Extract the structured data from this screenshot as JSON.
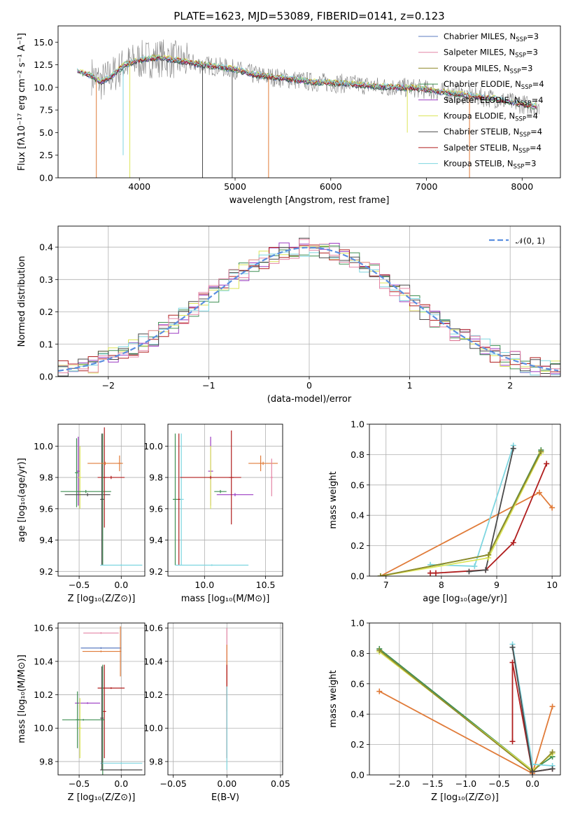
{
  "title": "PLATE=1623, MJD=53089, FIBERID=0141, z=0.123",
  "colors": {
    "Chabrier MILES": "#5b7bc2",
    "Salpeter MILES": "#e486a6",
    "Kroupa MILES": "#8f8a2a",
    "Chabrier ELODIE": "#3f8f52",
    "Salpeter ELODIE": "#9b3bc2",
    "Kroupa ELODIE": "#dce55a",
    "Chabrier STELIB": "#4a4a4a",
    "Salpeter STELIB": "#b01e1e",
    "Kroupa STELIB": "#7ed6e0",
    "orange": "#e07b39",
    "gaussian": "#5b8fe0"
  },
  "chart_data": [
    {
      "id": "spectrum",
      "type": "line",
      "xlabel": "wavelength [Angstrom, rest frame]",
      "ylabel": "Flux [fλ10⁻¹⁷ erg cm⁻² s⁻¹ A⁻¹]",
      "xlim": [
        3150,
        8400
      ],
      "ylim": [
        0,
        16.8
      ],
      "xticks": [
        4000,
        5000,
        6000,
        7000,
        8000
      ],
      "yticks": [
        0.0,
        2.5,
        5.0,
        7.5,
        10.0,
        12.5,
        15.0
      ],
      "legend": [
        {
          "label": "Chabrier MILES, N",
          "sub": "SSP",
          "suffix": "=3",
          "color": "Chabrier MILES"
        },
        {
          "label": "Salpeter MILES, N",
          "sub": "SSP",
          "suffix": "=3",
          "color": "Salpeter MILES"
        },
        {
          "label": "Kroupa MILES, N",
          "sub": "SSP",
          "suffix": "=3",
          "color": "Kroupa MILES"
        },
        {
          "label": "Chabrier ELODIE, N",
          "sub": "SSP",
          "suffix": "=4",
          "color": "Chabrier ELODIE"
        },
        {
          "label": "Salpeter ELODIE, N",
          "sub": "SSP",
          "suffix": "=4",
          "color": "Salpeter ELODIE"
        },
        {
          "label": "Kroupa ELODIE, N",
          "sub": "SSP",
          "suffix": "=4",
          "color": "Kroupa ELODIE"
        },
        {
          "label": "Chabrier STELIB, N",
          "sub": "SSP",
          "suffix": "=4",
          "color": "Chabrier STELIB"
        },
        {
          "label": "Salpeter STELIB, N",
          "sub": "SSP",
          "suffix": "=4",
          "color": "Salpeter STELIB"
        },
        {
          "label": "Kroupa STELIB, N",
          "sub": "SSP",
          "suffix": "=3",
          "color": "Kroupa STELIB"
        }
      ],
      "continuum": {
        "x": [
          3350,
          3500,
          3600,
          3700,
          3850,
          4000,
          4200,
          4400,
          4600,
          4800,
          5000,
          5200,
          5500,
          5800,
          6000,
          6300,
          6500,
          6700,
          6900,
          7100,
          7300,
          7500,
          7700,
          7900,
          8100,
          8200
        ],
        "y": [
          11.8,
          11.3,
          10.6,
          11.2,
          12.5,
          13.0,
          13.3,
          13.0,
          12.6,
          12.3,
          12.0,
          11.4,
          11.0,
          10.6,
          10.5,
          10.3,
          10.1,
          10.0,
          9.9,
          9.6,
          9.3,
          9.0,
          8.8,
          8.3,
          8.0,
          7.8
        ]
      },
      "dips": [
        {
          "x": 3550,
          "y": 0.0,
          "color": "orange"
        },
        {
          "x": 3900,
          "y": 0.0,
          "color": "Kroupa ELODIE"
        },
        {
          "x": 3830,
          "y": 2.5,
          "color": "Kroupa STELIB"
        },
        {
          "x": 4660,
          "y": 0.0,
          "color": "Chabrier STELIB"
        },
        {
          "x": 4970,
          "y": 0.0,
          "color": "Chabrier STELIB"
        },
        {
          "x": 5350,
          "y": 0.0,
          "color": "orange"
        },
        {
          "x": 6800,
          "y": 5.0,
          "color": "Kroupa ELODIE"
        },
        {
          "x": 7450,
          "y": 0.0,
          "color": "orange"
        }
      ]
    },
    {
      "id": "residuals",
      "type": "line",
      "xlabel": "(data-model)/error",
      "ylabel": "Normed distribution",
      "xlim": [
        -2.5,
        2.5
      ],
      "ylim": [
        0,
        0.465
      ],
      "xticks": [
        -2,
        -1,
        0,
        1,
        2
      ],
      "yticks": [
        0.0,
        0.1,
        0.2,
        0.3,
        0.4
      ],
      "legend": [
        {
          "label": "𝒩(0, 1)",
          "color": "gaussian"
        }
      ],
      "bin_width": 0.1,
      "gaussian": {
        "mean": 0,
        "sigma": 1
      }
    },
    {
      "id": "age_vs_Z",
      "type": "scatter",
      "xlabel": "Z [log₁₀(Z/Z⊙)]",
      "ylabel": "age  [log₁₀(age/yr)]",
      "xlim": [
        -0.75,
        0.28
      ],
      "ylim": [
        9.17,
        10.14
      ],
      "xticks": [
        -0.5,
        0.0
      ],
      "yticks": [
        9.2,
        9.4,
        9.6,
        9.8,
        10.0
      ],
      "points": [
        {
          "x": -0.51,
          "xerr": 0.02,
          "y": 9.84,
          "yerr": 0.22,
          "color": "Salpeter ELODIE"
        },
        {
          "x": -0.49,
          "xerr": 0.02,
          "y": 9.8,
          "yerr": 0.2,
          "color": "Kroupa ELODIE"
        },
        {
          "x": -0.53,
          "xerr": 0.02,
          "y": 9.83,
          "yerr": 0.22,
          "color": "Chabrier ELODIE"
        },
        {
          "x": -0.42,
          "xerr": 0.3,
          "y": 9.71,
          "yerr": 0.01,
          "color": "Chabrier ELODIE"
        },
        {
          "x": -0.4,
          "xerr": 0.27,
          "y": 9.69,
          "yerr": 0.01,
          "color": "Chabrier STELIB"
        },
        {
          "x": -0.2,
          "xerr": 0.02,
          "y": 9.8,
          "yerr": 0.32,
          "color": "Salpeter STELIB"
        },
        {
          "x": -0.12,
          "xerr": 0.16,
          "y": 9.8,
          "yerr": 0.01,
          "color": "Salpeter STELIB"
        },
        {
          "x": -0.22,
          "xerr": 0.02,
          "y": 9.66,
          "yerr": 0.42,
          "color": "Chabrier ELODIE"
        },
        {
          "x": -0.23,
          "xerr": 0.02,
          "y": 9.66,
          "yerr": 0.42,
          "color": "Chabrier STELIB"
        },
        {
          "x": -0.19,
          "xerr": 0.21,
          "y": 9.89,
          "yerr": 0.01,
          "color": "orange"
        },
        {
          "x": -0.02,
          "xerr": 0.02,
          "y": 9.89,
          "yerr": 0.05,
          "color": "orange"
        },
        {
          "x": 0.0,
          "xerr": 0.25,
          "y": 9.24,
          "yerr": 0.005,
          "color": "Kroupa STELIB"
        }
      ]
    },
    {
      "id": "age_vs_mass",
      "type": "scatter",
      "xlabel": "mass [log₁₀(M/M⊙)]",
      "ylabel": "",
      "xlim": [
        9.7,
        10.64
      ],
      "ylim": [
        9.17,
        10.14
      ],
      "xticks": [
        10.0,
        10.5
      ],
      "yticks": [
        9.2,
        9.4,
        9.6,
        9.8,
        10.0
      ],
      "points": [
        {
          "x": 9.76,
          "xerr": 0.02,
          "y": 9.66,
          "yerr": 0.42,
          "color": "Chabrier ELODIE"
        },
        {
          "x": 9.81,
          "xerr": 0.02,
          "y": 9.66,
          "yerr": 0.42,
          "color": "Kroupa STELIB"
        },
        {
          "x": 9.79,
          "xerr": 0.01,
          "y": 9.66,
          "yerr": 0.42,
          "color": "Salpeter STELIB"
        },
        {
          "x": 10.06,
          "xerr": 0.3,
          "y": 9.24,
          "yerr": 0.005,
          "color": "Kroupa STELIB"
        },
        {
          "x": 10.05,
          "xerr": 0.02,
          "y": 9.84,
          "yerr": 0.22,
          "color": "Salpeter ELODIE"
        },
        {
          "x": 10.05,
          "xerr": 0.02,
          "y": 9.8,
          "yerr": 0.2,
          "color": "Kroupa ELODIE"
        },
        {
          "x": 10.05,
          "xerr": 0.25,
          "y": 9.8,
          "yerr": 0.01,
          "color": "Salpeter STELIB"
        },
        {
          "x": 10.13,
          "xerr": 0.05,
          "y": 9.71,
          "yerr": 0.01,
          "color": "Chabrier ELODIE"
        },
        {
          "x": 10.25,
          "xerr": 0.15,
          "y": 9.69,
          "yerr": 0.01,
          "color": "Salpeter ELODIE"
        },
        {
          "x": 10.22,
          "xerr": 0.02,
          "y": 9.8,
          "yerr": 0.3,
          "color": "Salpeter STELIB"
        },
        {
          "x": 10.48,
          "xerr": 0.12,
          "y": 9.89,
          "yerr": 0.01,
          "color": "orange"
        },
        {
          "x": 10.55,
          "xerr": 0.01,
          "y": 9.8,
          "yerr": 0.12,
          "color": "Salpeter MILES"
        },
        {
          "x": 10.46,
          "xerr": 0.01,
          "y": 9.89,
          "yerr": 0.05,
          "color": "orange"
        }
      ]
    },
    {
      "id": "weight_vs_age",
      "type": "line",
      "xlabel": "age  [log₁₀(age/yr)]",
      "ylabel": "mass weight",
      "xlim": [
        6.7,
        10.15
      ],
      "ylim": [
        0,
        1
      ],
      "xticks": [
        7,
        8,
        9,
        10
      ],
      "yticks": [
        0.0,
        0.2,
        0.4,
        0.6,
        0.8,
        1.0
      ],
      "series": [
        {
          "color": "orange",
          "x": [
            6.9,
            9.77,
            10.0
          ],
          "y": [
            0.0,
            0.55,
            0.45
          ]
        },
        {
          "color": "Salpeter STELIB",
          "x": [
            7.8,
            7.9,
            8.8,
            9.3,
            9.9
          ],
          "y": [
            0.02,
            0.02,
            0.04,
            0.22,
            0.74
          ]
        },
        {
          "color": "Kroupa STELIB",
          "x": [
            7.8,
            8.6,
            9.3
          ],
          "y": [
            0.075,
            0.065,
            0.86
          ]
        },
        {
          "color": "Chabrier STELIB",
          "x": [
            8.5,
            8.8,
            9.3
          ],
          "y": [
            0.03,
            0.04,
            0.84
          ]
        },
        {
          "color": "Chabrier ELODIE",
          "x": [
            6.9,
            8.85,
            9.8
          ],
          "y": [
            0.0,
            0.14,
            0.83
          ]
        },
        {
          "color": "Kroupa ELODIE",
          "x": [
            6.9,
            8.85,
            9.8
          ],
          "y": [
            0.0,
            0.12,
            0.81
          ]
        },
        {
          "color": "Kroupa MILES",
          "x": [
            6.9,
            8.85,
            9.8
          ],
          "y": [
            0.0,
            0.14,
            0.82
          ]
        }
      ]
    },
    {
      "id": "mass_vs_Z",
      "type": "scatter",
      "xlabel": "Z [log₁₀(Z/Z⊙)]",
      "ylabel": "mass [log₁₀(M/M⊙)]",
      "xlim": [
        -0.75,
        0.28
      ],
      "ylim": [
        9.72,
        10.63
      ],
      "xticks": [
        -0.5,
        0.0
      ],
      "yticks": [
        9.8,
        10.0,
        10.2,
        10.4,
        10.6
      ],
      "points": [
        {
          "x": -0.24,
          "xerr": 0.21,
          "y": 10.57,
          "yerr": 0.005,
          "color": "Salpeter MILES"
        },
        {
          "x": -0.24,
          "xerr": 0.24,
          "y": 10.48,
          "yerr": 0.005,
          "color": "Chabrier MILES"
        },
        {
          "x": -0.24,
          "xerr": 0.22,
          "y": 10.46,
          "yerr": 0.005,
          "color": "orange"
        },
        {
          "x": -0.01,
          "xerr": 0.01,
          "y": 10.46,
          "yerr": 0.15,
          "color": "orange"
        },
        {
          "x": -0.12,
          "xerr": 0.16,
          "y": 10.24,
          "yerr": 0.005,
          "color": "Salpeter STELIB"
        },
        {
          "x": -0.2,
          "xerr": 0.02,
          "y": 10.1,
          "yerr": 0.28,
          "color": "Salpeter STELIB"
        },
        {
          "x": -0.4,
          "xerr": 0.15,
          "y": 10.15,
          "yerr": 0.005,
          "color": "Salpeter ELODIE"
        },
        {
          "x": -0.52,
          "xerr": 0.02,
          "y": 10.05,
          "yerr": 0.17,
          "color": "Chabrier ELODIE"
        },
        {
          "x": -0.49,
          "xerr": 0.02,
          "y": 10.0,
          "yerr": 0.18,
          "color": "Kroupa ELODIE"
        },
        {
          "x": -0.45,
          "xerr": 0.25,
          "y": 10.05,
          "yerr": 0.005,
          "color": "Chabrier ELODIE"
        },
        {
          "x": -0.22,
          "xerr": 0.02,
          "y": 10.05,
          "yerr": 0.33,
          "color": "Chabrier ELODIE"
        },
        {
          "x": 0.0,
          "xerr": 0.25,
          "y": 9.79,
          "yerr": 0.005,
          "color": "Kroupa STELIB"
        },
        {
          "x": 0.0,
          "xerr": 0.25,
          "y": 9.75,
          "yerr": 0.005,
          "color": "Chabrier STELIB"
        },
        {
          "x": -0.23,
          "xerr": 0.02,
          "y": 10.06,
          "yerr": 0.31,
          "color": "Chabrier STELIB"
        }
      ]
    },
    {
      "id": "mass_vs_EBV",
      "type": "scatter",
      "xlabel": "E(B-V)",
      "ylabel": "",
      "xlim": [
        -0.055,
        0.052
      ],
      "ylim": [
        9.72,
        10.63
      ],
      "xticks": [
        -0.05,
        0.0,
        0.05
      ],
      "yticks": [
        9.8,
        10.0,
        10.2,
        10.4,
        10.6
      ],
      "points": [
        {
          "x": 0.0,
          "xerr": 0.0,
          "y": 10.36,
          "yerr": 0.24,
          "color": "Salpeter MILES"
        },
        {
          "x": 0.0,
          "xerr": 0.0,
          "y": 10.3,
          "yerr": 0.2,
          "color": "orange"
        },
        {
          "x": 0.0,
          "xerr": 0.0,
          "y": 10.1,
          "yerr": 0.28,
          "color": "Salpeter STELIB"
        },
        {
          "x": 0.0,
          "xerr": 0.0,
          "y": 10.0,
          "yerr": 0.25,
          "color": "Kroupa STELIB"
        }
      ]
    },
    {
      "id": "weight_vs_Z",
      "type": "line",
      "xlabel": "Z [log₁₀(Z/Z⊙)]",
      "ylabel": "mass weight",
      "xlim": [
        -2.45,
        0.42
      ],
      "ylim": [
        0,
        1
      ],
      "xticks": [
        -2.0,
        -1.5,
        -1.0,
        -0.5,
        0.0
      ],
      "yticks": [
        0.0,
        0.2,
        0.4,
        0.6,
        0.8,
        1.0
      ],
      "series": [
        {
          "color": "orange",
          "x": [
            -2.3,
            0.0,
            0.3
          ],
          "y": [
            0.55,
            0.01,
            0.45
          ]
        },
        {
          "color": "Chabrier ELODIE",
          "x": [
            -2.3,
            0.0,
            0.3
          ],
          "y": [
            0.83,
            0.03,
            0.12
          ]
        },
        {
          "color": "Kroupa ELODIE",
          "x": [
            -2.3,
            0.0,
            0.3
          ],
          "y": [
            0.81,
            0.03,
            0.14
          ]
        },
        {
          "color": "Kroupa MILES",
          "x": [
            -2.3,
            0.0,
            0.3
          ],
          "y": [
            0.82,
            0.02,
            0.15
          ]
        },
        {
          "color": "Salpeter STELIB",
          "x": [
            -0.3,
            -0.3,
            0.0,
            0.3
          ],
          "y": [
            0.22,
            0.74,
            0.02,
            0.04
          ]
        },
        {
          "color": "Kroupa STELIB",
          "x": [
            -0.3,
            0.0,
            0.3
          ],
          "y": [
            0.86,
            0.07,
            0.06
          ]
        },
        {
          "color": "Chabrier STELIB",
          "x": [
            -0.3,
            0.0,
            0.3
          ],
          "y": [
            0.84,
            0.02,
            0.04
          ]
        }
      ]
    }
  ]
}
